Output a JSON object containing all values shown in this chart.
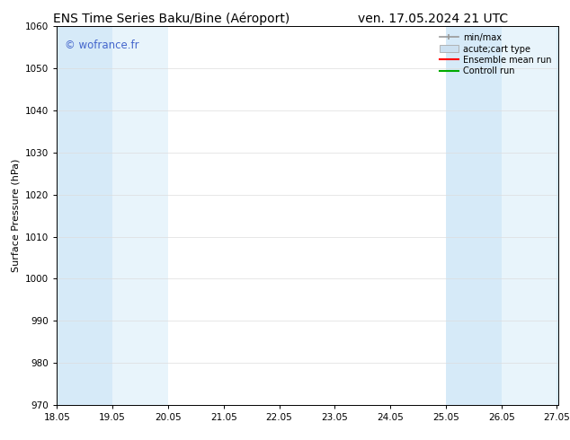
{
  "title_left": "ENS Time Series Baku/Bine (Aéroport)",
  "title_right": "ven. 17.05.2024 21 UTC",
  "ylabel": "Surface Pressure (hPa)",
  "ylim": [
    970,
    1060
  ],
  "yticks": [
    970,
    980,
    990,
    1000,
    1010,
    1020,
    1030,
    1040,
    1050,
    1060
  ],
  "xticks": [
    18.05,
    19.05,
    20.05,
    21.05,
    22.05,
    23.05,
    24.05,
    25.05,
    26.05,
    27.05
  ],
  "xlabels": [
    "18.05",
    "19.05",
    "20.05",
    "21.05",
    "22.05",
    "23.05",
    "24.05",
    "25.05",
    "26.05",
    "27.05"
  ],
  "xlim_start": 18.05,
  "xlim_end": 27.08,
  "band_color_1": "#d6eaf8",
  "band_color_2": "#e8f4fb",
  "shaded_bands": [
    {
      "x_start": 18.05,
      "x_end": 19.05,
      "shade": 1
    },
    {
      "x_start": 19.05,
      "x_end": 20.05,
      "shade": 2
    },
    {
      "x_start": 25.05,
      "x_end": 26.05,
      "shade": 1
    },
    {
      "x_start": 26.05,
      "x_end": 27.05,
      "shade": 2
    },
    {
      "x_start": 27.05,
      "x_end": 27.08,
      "shade": 1
    }
  ],
  "watermark": "© wofrance.fr",
  "watermark_color": "#4466cc",
  "background_color": "#ffffff",
  "legend_entries": [
    {
      "label": "min/max",
      "type": "errorbar",
      "color": "#aaaaaa"
    },
    {
      "label": "acute;cart type",
      "type": "box",
      "color": "#cce0f0"
    },
    {
      "label": "Ensemble mean run",
      "type": "line",
      "color": "#ff0000"
    },
    {
      "label": "Controll run",
      "type": "line",
      "color": "#00aa00"
    }
  ],
  "title_fontsize": 10,
  "ylabel_fontsize": 8,
  "tick_fontsize": 7.5,
  "legend_fontsize": 7,
  "watermark_fontsize": 8.5
}
